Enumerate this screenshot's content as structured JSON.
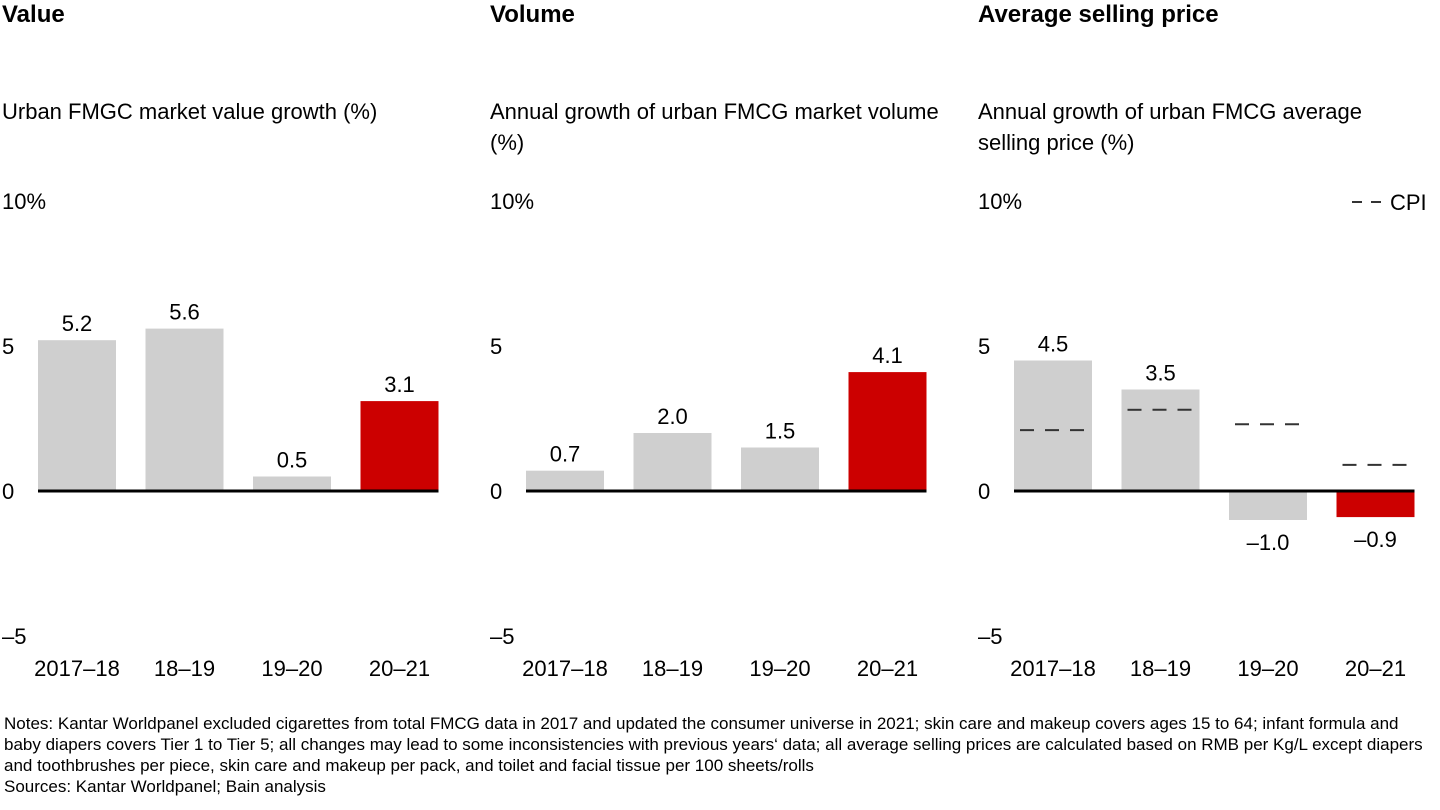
{
  "chart_data": [
    {
      "type": "bar",
      "title": "Value",
      "subtitle": "Urban FMGC market value growth (%)",
      "xlabel": "",
      "ylabel": "",
      "ylim": [
        -5,
        10
      ],
      "yticks": [
        {
          "value": 10,
          "label": "10%"
        },
        {
          "value": 5,
          "label": "5"
        },
        {
          "value": 0,
          "label": "0"
        },
        {
          "value": -5,
          "label": "–5"
        }
      ],
      "categories": [
        "2017–18",
        "18–19",
        "19–20",
        "20–21"
      ],
      "values": [
        5.2,
        5.6,
        0.5,
        3.1
      ],
      "data_labels": [
        "5.2",
        "5.6",
        "0.5",
        "3.1"
      ],
      "highlight": [
        false,
        false,
        false,
        true
      ],
      "colors": {
        "default": "#cfcfcf",
        "highlight": "#cc0000",
        "axis": "#000000"
      },
      "grid": false
    },
    {
      "type": "bar",
      "title": "Volume",
      "subtitle": "Annual growth of urban FMCG market volume (%)",
      "xlabel": "",
      "ylabel": "",
      "ylim": [
        -5,
        10
      ],
      "yticks": [
        {
          "value": 10,
          "label": "10%"
        },
        {
          "value": 5,
          "label": "5"
        },
        {
          "value": 0,
          "label": "0"
        },
        {
          "value": -5,
          "label": "–5"
        }
      ],
      "categories": [
        "2017–18",
        "18–19",
        "19–20",
        "20–21"
      ],
      "values": [
        0.7,
        2.0,
        1.5,
        4.1
      ],
      "data_labels": [
        "0.7",
        "2.0",
        "1.5",
        "4.1"
      ],
      "highlight": [
        false,
        false,
        false,
        true
      ],
      "colors": {
        "default": "#cfcfcf",
        "highlight": "#cc0000",
        "axis": "#000000"
      },
      "grid": false
    },
    {
      "type": "bar",
      "title": "Average selling price",
      "subtitle": "Annual growth of urban FMCG average selling price (%)",
      "xlabel": "",
      "ylabel": "",
      "ylim": [
        -5,
        10
      ],
      "yticks": [
        {
          "value": 10,
          "label": "10%"
        },
        {
          "value": 5,
          "label": "5"
        },
        {
          "value": 0,
          "label": "0"
        },
        {
          "value": -5,
          "label": "–5"
        }
      ],
      "categories": [
        "2017–18",
        "18–19",
        "19–20",
        "20–21"
      ],
      "values": [
        4.5,
        3.5,
        -1.0,
        -0.9
      ],
      "data_labels": [
        "4.5",
        "3.5",
        "–1.0",
        "–0.9"
      ],
      "highlight": [
        false,
        false,
        false,
        true
      ],
      "colors": {
        "default": "#cfcfcf",
        "highlight": "#cc0000",
        "axis": "#000000",
        "cpi": "#333333"
      },
      "overlay_series": [
        {
          "name": "CPI",
          "style": "dashed",
          "values": [
            2.1,
            2.8,
            2.3,
            0.9
          ]
        }
      ],
      "legend": {
        "entries": [
          "CPI"
        ],
        "placement": "top-right"
      },
      "grid": false
    }
  ],
  "footer": {
    "notes": "Notes: Kantar Worldpanel excluded cigarettes from total FMCG data in 2017 and updated the consumer universe in 2021; skin care and makeup covers ages 15 to 64; infant formula and baby diapers covers Tier 1 to Tier 5; all changes may lead to some inconsistencies with previous years‘ data; all average selling prices are calculated based on RMB per Kg/L except diapers and toothbrushes per piece, skin care and makeup per pack, and toilet and facial tissue per 100 sheets/rolls",
    "sources": "Sources: Kantar Worldpanel; Bain analysis"
  }
}
